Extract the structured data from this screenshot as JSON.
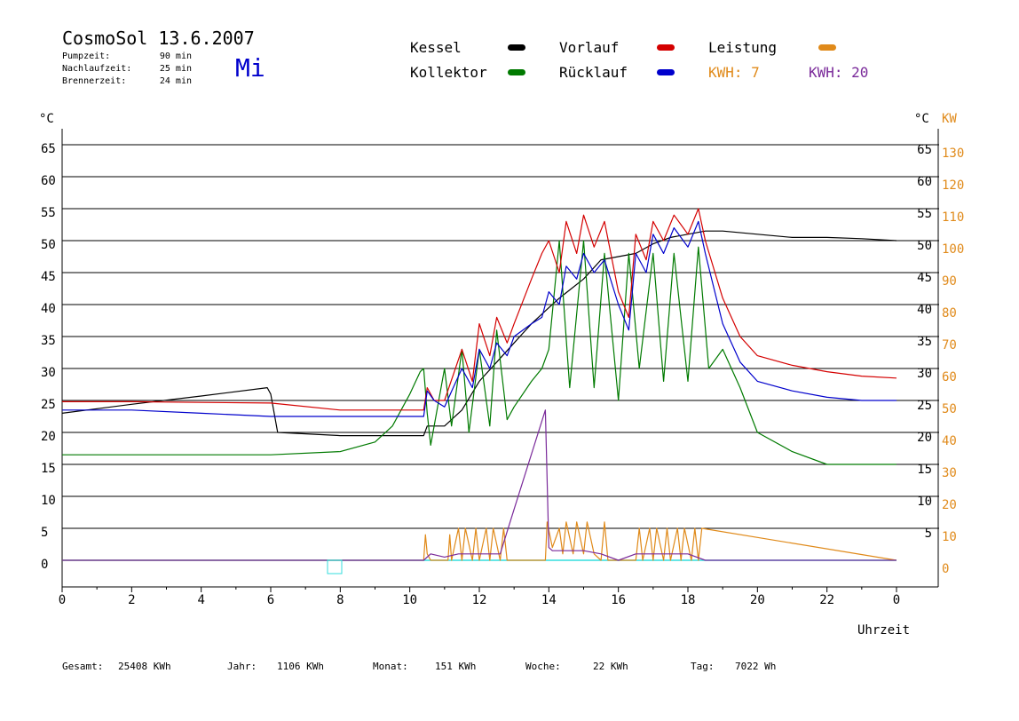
{
  "header": {
    "title": "CosmoSol 13.6.2007",
    "day": "Mi",
    "info": [
      {
        "label": "Pumpzeit:",
        "value": "90 min"
      },
      {
        "label": "Nachlaufzeit:",
        "value": "25 min"
      },
      {
        "label": "Brennerzeit:",
        "value": "24 min"
      }
    ]
  },
  "legend": {
    "kessel": "Kessel",
    "kollektor": "Kollektor",
    "vorlauf": "Vorlauf",
    "ruecklauf": "Rücklauf",
    "leistung": "Leistung",
    "kwh1": "KWH: 7",
    "kwh2": "KWH: 20"
  },
  "colors": {
    "kessel": "#000000",
    "kollektor": "#007a00",
    "vorlauf": "#d40000",
    "ruecklauf": "#0000cc",
    "leistung": "#e08a1a",
    "kwh2": "#7a2a9a",
    "zero_line": "#33dddd"
  },
  "axes": {
    "left_unit": "°C",
    "right_unit_c": "°C",
    "right_unit_kw": "KW",
    "xlabel": "Uhrzeit"
  },
  "footer": [
    {
      "label": "Gesamt:",
      "value": "25408 KWh"
    },
    {
      "label": "Jahr:",
      "value": "1106 KWh"
    },
    {
      "label": "Monat:",
      "value": "151 KWh"
    },
    {
      "label": "Woche:",
      "value": "22 KWh"
    },
    {
      "label": "Tag:",
      "value": "7022 Wh"
    }
  ],
  "chart_data": {
    "type": "line",
    "title": "CosmoSol 13.6.2007",
    "xlabel": "Uhrzeit",
    "ylabel": "°C",
    "y2label": "KW",
    "xlim": [
      0,
      24
    ],
    "ylim": [
      -4,
      69
    ],
    "grid": true,
    "x_ticks": [
      "0",
      "2",
      "4",
      "6",
      "8",
      "10",
      "12",
      "14",
      "16",
      "18",
      "20",
      "22",
      "0"
    ],
    "y_ticks": [
      0,
      5,
      10,
      15,
      20,
      25,
      30,
      35,
      40,
      45,
      50,
      55,
      60,
      65
    ],
    "y_ticks_right": [
      "5",
      "10",
      "15",
      "20",
      "25",
      "30",
      "35",
      "40",
      "45",
      "50",
      "55",
      "60",
      "65"
    ],
    "kw_ticks": [
      "0",
      "10",
      "20",
      "30",
      "40",
      "50",
      "60",
      "70",
      "80",
      "90",
      "100",
      "110",
      "120",
      "130"
    ],
    "series": [
      {
        "name": "Kessel",
        "x": [
          0,
          2,
          4,
          5.9,
          6,
          6.2,
          8,
          10.4,
          10.5,
          11,
          11.5,
          12,
          12.5,
          13,
          13.5,
          14,
          14.3,
          15,
          15.5,
          16,
          16.5,
          17,
          17.5,
          18,
          18.5,
          19,
          20,
          21,
          22,
          23,
          24
        ],
        "y": [
          23,
          24.4,
          25.7,
          27,
          26,
          20,
          19.5,
          19.5,
          21,
          21,
          23.5,
          28,
          31,
          34,
          37,
          39.5,
          41,
          44,
          47,
          47.5,
          48,
          49.5,
          50.5,
          51,
          51.5,
          51.5,
          51,
          50.5,
          50.5,
          50.3,
          50
        ]
      },
      {
        "name": "Kollektor",
        "x": [
          0,
          2,
          4,
          6,
          8,
          9,
          9.5,
          10,
          10.3,
          10.4,
          10.5,
          10.6,
          11,
          11.2,
          11.5,
          11.7,
          12,
          12.3,
          12.5,
          12.8,
          13,
          13.5,
          13.8,
          14,
          14.3,
          14.6,
          15,
          15.3,
          15.6,
          16,
          16.3,
          16.6,
          17,
          17.3,
          17.6,
          18,
          18.3,
          18.6,
          19,
          19.5,
          20,
          21,
          22,
          23,
          24
        ],
        "y": [
          16.5,
          16.5,
          16.5,
          16.5,
          17,
          18.5,
          21,
          26,
          29.5,
          30,
          23,
          18,
          30,
          21,
          33,
          20,
          33,
          21,
          36,
          22,
          24,
          28,
          30,
          33,
          50,
          27,
          50,
          27,
          48,
          25,
          48,
          30,
          48,
          28,
          48,
          28,
          49,
          30,
          33,
          27,
          20,
          17,
          15,
          15,
          15
        ]
      },
      {
        "name": "Vorlauf",
        "x": [
          0,
          2,
          4,
          6,
          8,
          10.4,
          10.5,
          10.7,
          11,
          11.5,
          11.8,
          12,
          12.3,
          12.5,
          12.8,
          13,
          13.5,
          13.8,
          14,
          14.3,
          14.5,
          14.8,
          15,
          15.3,
          15.6,
          16,
          16.3,
          16.5,
          16.8,
          17,
          17.3,
          17.6,
          18,
          18.3,
          18.5,
          19,
          19.5,
          20,
          21,
          22,
          23,
          24
        ],
        "y": [
          24.8,
          24.8,
          24.7,
          24.6,
          23.5,
          23.5,
          27,
          25,
          25,
          33,
          28,
          37,
          32,
          38,
          34,
          37,
          44,
          48,
          50,
          45,
          53,
          48,
          54,
          49,
          53,
          42,
          38,
          51,
          47,
          53,
          50,
          54,
          51,
          55,
          50,
          41,
          35,
          32,
          30.5,
          29.5,
          28.8,
          28.5
        ]
      },
      {
        "name": "Rücklauf",
        "x": [
          0,
          2,
          4,
          6,
          8,
          10.4,
          10.5,
          10.7,
          11,
          11.5,
          11.8,
          12,
          12.3,
          12.5,
          12.8,
          13,
          13.5,
          13.8,
          14,
          14.3,
          14.5,
          14.8,
          15,
          15.3,
          15.6,
          16,
          16.3,
          16.5,
          16.8,
          17,
          17.3,
          17.6,
          18,
          18.3,
          18.5,
          19,
          19.5,
          20,
          21,
          22,
          23,
          24
        ],
        "y": [
          23.5,
          23.5,
          23,
          22.5,
          22.5,
          22.5,
          26.5,
          25,
          24,
          30,
          27,
          33,
          30,
          34,
          32,
          35,
          37,
          38,
          42,
          40,
          46,
          44,
          48,
          45,
          47,
          40,
          36,
          48,
          45,
          51,
          48,
          52,
          49,
          53,
          48,
          37,
          31,
          28,
          26.5,
          25.5,
          25,
          25
        ]
      },
      {
        "name": "Leistung",
        "x": [
          0,
          10.4,
          10.45,
          10.5,
          10.6,
          11.1,
          11.15,
          11.2,
          11.4,
          11.5,
          11.6,
          11.8,
          11.9,
          12,
          12.2,
          12.3,
          12.4,
          12.6,
          12.7,
          12.8,
          13.9,
          13.95,
          14.1,
          14.3,
          14.4,
          14.5,
          14.7,
          14.8,
          15,
          15.1,
          15.3,
          15.5,
          15.6,
          15.7,
          16,
          16.5,
          16.6,
          16.7,
          16.9,
          17,
          17.1,
          17.3,
          17.4,
          17.5,
          17.7,
          17.8,
          17.9,
          18.1,
          18.2,
          18.3,
          18.4,
          24
        ],
        "y": [
          0,
          0,
          4,
          1,
          0,
          0,
          4,
          0,
          5,
          0,
          5,
          0,
          5,
          0,
          5,
          0,
          5,
          0,
          5,
          0,
          0,
          6,
          2,
          5,
          1,
          6,
          1,
          6,
          1,
          6,
          1,
          0,
          6,
          0,
          0,
          0,
          5,
          0,
          5,
          0,
          5,
          0,
          5,
          0,
          5,
          0,
          5,
          0,
          5,
          0,
          5,
          0
        ]
      },
      {
        "name": "KWH: 20",
        "x": [
          0,
          10.4,
          10.6,
          11,
          11.4,
          12,
          12.6,
          13,
          13.9,
          14,
          14.1,
          14.5,
          15,
          15.5,
          16,
          16.5,
          17,
          17.5,
          18,
          18.5,
          24
        ],
        "y": [
          0,
          0,
          1,
          0.5,
          1,
          1,
          1,
          8,
          23.5,
          2,
          1.5,
          1.5,
          1.5,
          1,
          0,
          1,
          1,
          1,
          1,
          0,
          0
        ]
      }
    ]
  }
}
